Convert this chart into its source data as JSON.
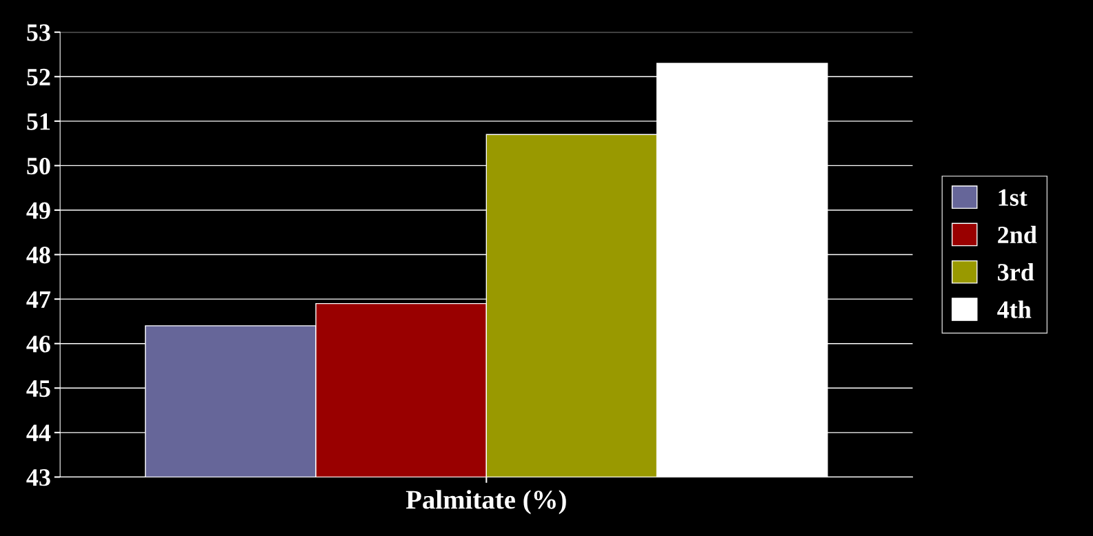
{
  "chart_data": {
    "type": "bar",
    "xlabel": "Palmitate (%)",
    "categories": [
      null
    ],
    "series": [
      {
        "name": "1st",
        "color": "#666699",
        "values": [
          46.4
        ]
      },
      {
        "name": "2nd",
        "color": "#990000",
        "values": [
          46.9
        ]
      },
      {
        "name": "3rd",
        "color": "#999900",
        "values": [
          50.7
        ]
      },
      {
        "name": "4th",
        "color": "#ffffff",
        "values": [
          52.3
        ]
      }
    ],
    "ylim": [
      43,
      53
    ],
    "yticks": [
      43,
      44,
      45,
      46,
      47,
      48,
      49,
      50,
      51,
      52,
      53
    ],
    "grid": "y",
    "legend": "right"
  }
}
